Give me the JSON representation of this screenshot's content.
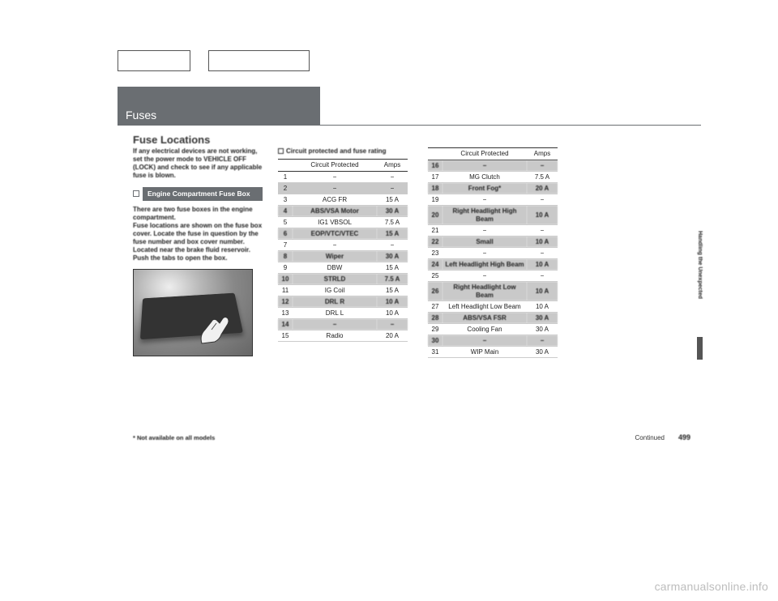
{
  "top_boxes": {
    "count": 2
  },
  "section_tab": "Fuses",
  "title": "Fuse Locations",
  "intro": "If any electrical devices are not working, set the power mode to VEHICLE OFF (LOCK) and check to see if any applicable fuse is blown.",
  "sub_bar_label": "Engine Compartment Fuse Box",
  "body_text": "There are two fuse boxes in the engine compartment.\nFuse locations are shown on the fuse box cover. Locate the fuse in question by the fuse number and box cover number.\nLocated near the brake fluid reservoir. Push the tabs to open the box.",
  "rating_heading": "Circuit protected and fuse rating",
  "table_headers": {
    "num": "",
    "circuit": "Circuit Protected",
    "amps": "Amps"
  },
  "table1": [
    {
      "n": "1",
      "c": "−",
      "a": "−",
      "shade": false,
      "blur": false
    },
    {
      "n": "2",
      "c": "−",
      "a": "−",
      "shade": true,
      "blur": false
    },
    {
      "n": "3",
      "c": "ACG FR",
      "a": "15 A",
      "shade": false,
      "blur": false
    },
    {
      "n": "4",
      "c": "ABS/VSA Motor",
      "a": "30 A",
      "shade": true,
      "blur": true
    },
    {
      "n": "5",
      "c": "IG1 VBSOL",
      "a": "7.5 A",
      "shade": false,
      "blur": false
    },
    {
      "n": "6",
      "c": "EOP/VTC/VTEC",
      "a": "15 A",
      "shade": true,
      "blur": true
    },
    {
      "n": "7",
      "c": "−",
      "a": "−",
      "shade": false,
      "blur": false
    },
    {
      "n": "8",
      "c": "Wiper",
      "a": "30 A",
      "shade": true,
      "blur": true
    },
    {
      "n": "9",
      "c": "DBW",
      "a": "15 A",
      "shade": false,
      "blur": false
    },
    {
      "n": "10",
      "c": "STRLD",
      "a": "7.5 A",
      "shade": true,
      "blur": true
    },
    {
      "n": "11",
      "c": "IG Coil",
      "a": "15 A",
      "shade": false,
      "blur": false
    },
    {
      "n": "12",
      "c": "DRL R",
      "a": "10 A",
      "shade": true,
      "blur": true
    },
    {
      "n": "13",
      "c": "DRL L",
      "a": "10 A",
      "shade": false,
      "blur": false
    },
    {
      "n": "14",
      "c": "−",
      "a": "−",
      "shade": true,
      "blur": true
    },
    {
      "n": "15",
      "c": "Radio",
      "a": "20 A",
      "shade": false,
      "blur": false
    }
  ],
  "table2": [
    {
      "n": "16",
      "c": "−",
      "a": "−",
      "shade": true,
      "blur": true
    },
    {
      "n": "17",
      "c": "MG Clutch",
      "a": "7.5 A",
      "shade": false,
      "blur": false
    },
    {
      "n": "18",
      "c": "Front Fog*",
      "a": "20 A",
      "shade": true,
      "blur": true
    },
    {
      "n": "19",
      "c": "−",
      "a": "−",
      "shade": false,
      "blur": false
    },
    {
      "n": "20",
      "c": "Right Headlight High Beam",
      "a": "10 A",
      "shade": true,
      "blur": true
    },
    {
      "n": "21",
      "c": "−",
      "a": "−",
      "shade": false,
      "blur": false
    },
    {
      "n": "22",
      "c": "Small",
      "a": "10 A",
      "shade": true,
      "blur": true
    },
    {
      "n": "23",
      "c": "−",
      "a": "−",
      "shade": false,
      "blur": false
    },
    {
      "n": "24",
      "c": "Left Headlight High Beam",
      "a": "10 A",
      "shade": true,
      "blur": true
    },
    {
      "n": "25",
      "c": "−",
      "a": "−",
      "shade": false,
      "blur": false
    },
    {
      "n": "26",
      "c": "Right Headlight Low Beam",
      "a": "10 A",
      "shade": true,
      "blur": true
    },
    {
      "n": "27",
      "c": "Left Headlight Low Beam",
      "a": "10 A",
      "shade": false,
      "blur": false
    },
    {
      "n": "28",
      "c": "ABS/VSA FSR",
      "a": "30 A",
      "shade": true,
      "blur": true
    },
    {
      "n": "29",
      "c": "Cooling Fan",
      "a": "30 A",
      "shade": false,
      "blur": false
    },
    {
      "n": "30",
      "c": "−",
      "a": "−",
      "shade": true,
      "blur": true
    },
    {
      "n": "31",
      "c": "WIP Main",
      "a": "30 A",
      "shade": false,
      "blur": false
    }
  ],
  "footnote": "* Not available on all models",
  "continued": "Continued",
  "pagenum": "499",
  "side_label": "Handling the Unexpected",
  "watermark": "carmanualsonline.info"
}
